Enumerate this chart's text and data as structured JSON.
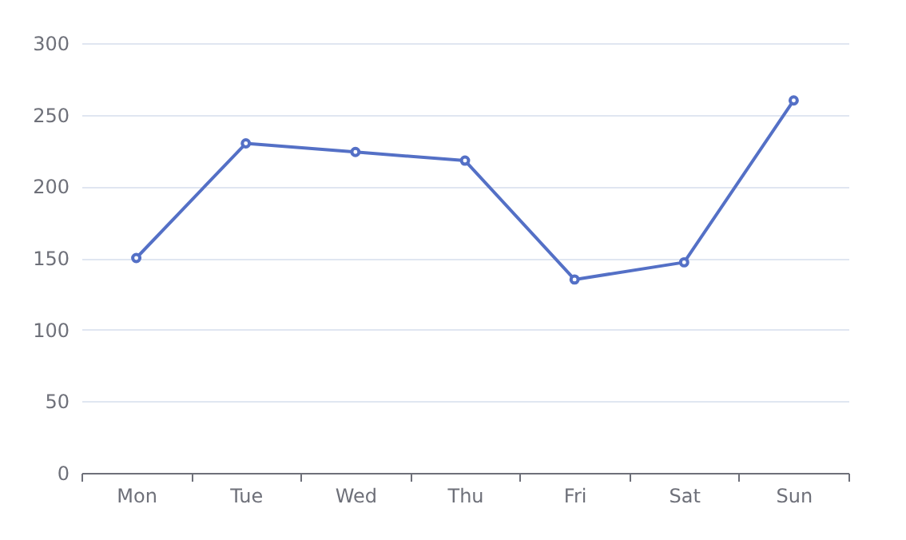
{
  "chart_data": {
    "type": "line",
    "categories": [
      "Mon",
      "Tue",
      "Wed",
      "Thu",
      "Fri",
      "Sat",
      "Sun"
    ],
    "series": [
      {
        "color": "#5470c6",
        "values": [
          150,
          230,
          224,
          218,
          135,
          147,
          260
        ]
      }
    ],
    "ylim": [
      0,
      300
    ],
    "yticks": [
      0,
      50,
      100,
      150,
      200,
      250,
      300
    ],
    "grid": "y",
    "marker": "circle",
    "line_style": "solid"
  }
}
